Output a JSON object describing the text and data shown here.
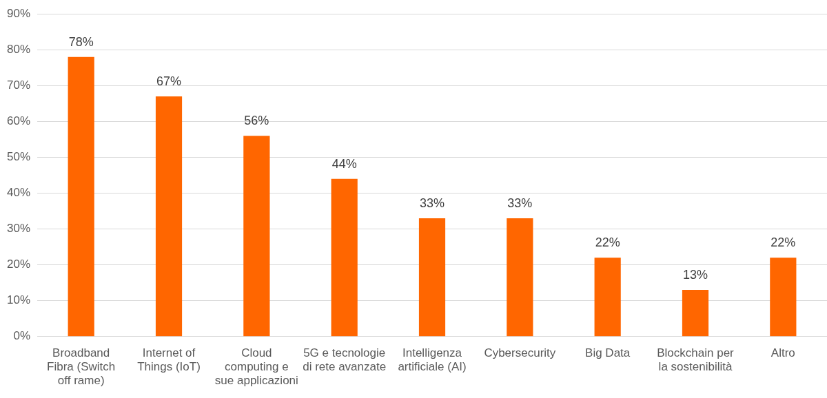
{
  "chart_data": {
    "type": "bar",
    "categories": [
      "Broadband Fibra (Switch off rame)",
      "Internet of Things (IoT)",
      "Cloud computing e sue applicazioni",
      "5G e tecnologie di rete avanzate",
      "Intelligenza artificiale (AI)",
      "Cybersecurity",
      "Big Data",
      "Blockchain per la sostenibilità",
      "Altro"
    ],
    "values": [
      78,
      67,
      56,
      44,
      33,
      33,
      22,
      13,
      22
    ],
    "color": "#ff6600",
    "ylim": [
      0,
      90
    ],
    "yticks": [
      {
        "value": 0,
        "label": "0%"
      },
      {
        "value": 10,
        "label": "10%"
      },
      {
        "value": 20,
        "label": "20%"
      },
      {
        "value": 30,
        "label": "30%"
      },
      {
        "value": 40,
        "label": "40%"
      },
      {
        "value": 50,
        "label": "50%"
      },
      {
        "value": 60,
        "label": "60%"
      },
      {
        "value": 70,
        "label": "70%"
      },
      {
        "value": 80,
        "label": "80%"
      },
      {
        "value": 90,
        "label": "90%"
      }
    ],
    "value_labels": [
      "78%",
      "67%",
      "56%",
      "44%",
      "33%",
      "33%",
      "22%",
      "13%",
      "22%"
    ],
    "grid": "y"
  }
}
